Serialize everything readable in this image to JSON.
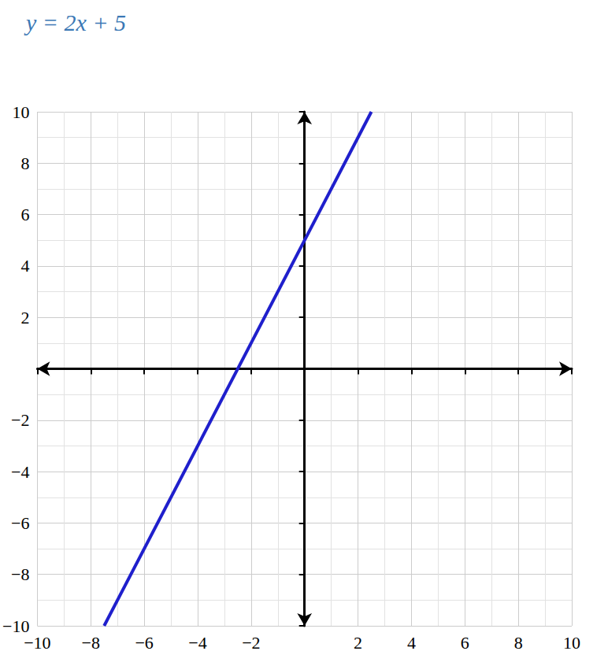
{
  "chart_data": {
    "type": "line",
    "title": "y = 2x + 5",
    "x": [
      -7.5,
      2.5
    ],
    "values": [
      -10,
      10
    ],
    "color": "#1f1fcc",
    "xlim": [
      -10,
      10
    ],
    "ylim": [
      -10,
      10
    ],
    "xticks": [
      {
        "value": -10,
        "label": "−10"
      },
      {
        "value": -8,
        "label": "−8"
      },
      {
        "value": -6,
        "label": "−6"
      },
      {
        "value": -4,
        "label": "−4"
      },
      {
        "value": -2,
        "label": "−2"
      },
      2,
      4,
      6,
      8,
      10
    ],
    "yticks": [
      {
        "value": -10,
        "label": "−10"
      },
      {
        "value": -8,
        "label": "−8"
      },
      {
        "value": -6,
        "label": "−6"
      },
      {
        "value": -4,
        "label": "−4"
      },
      {
        "value": -2,
        "label": "−2"
      },
      2,
      4,
      6,
      8,
      10
    ],
    "grid": true
  }
}
